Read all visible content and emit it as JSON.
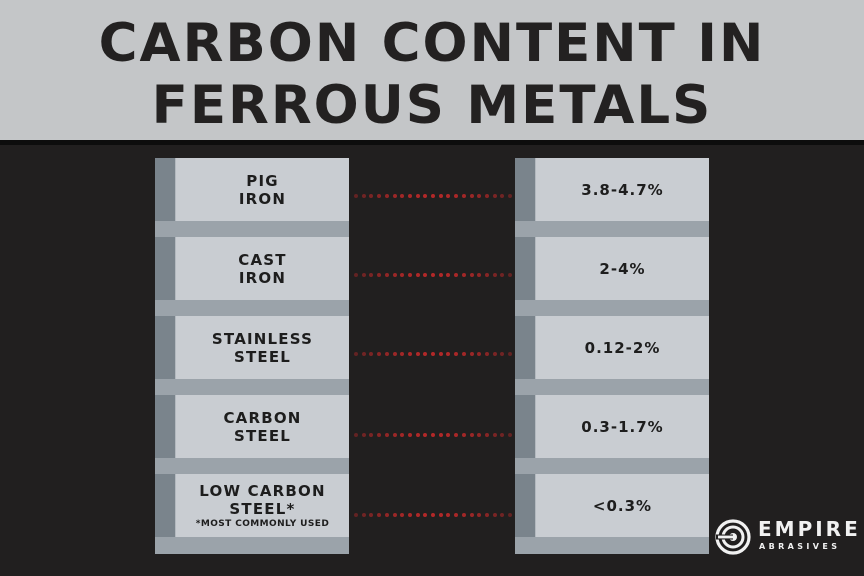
{
  "title_lines": [
    "CARBON CONTENT IN",
    "FERROUS METALS"
  ],
  "rows": [
    {
      "label_lines": [
        "PIG",
        "IRON"
      ],
      "note": "",
      "value": "3.8-4.7%"
    },
    {
      "label_lines": [
        "CAST",
        "IRON"
      ],
      "note": "",
      "value": "2-4%"
    },
    {
      "label_lines": [
        "STAINLESS",
        "STEEL"
      ],
      "note": "",
      "value": "0.12-2%"
    },
    {
      "label_lines": [
        "CARBON",
        "STEEL"
      ],
      "note": "",
      "value": "0.3-1.7%"
    },
    {
      "label_lines": [
        "LOW CARBON",
        "STEEL*"
      ],
      "note": "*MOST COMMONLY USED",
      "value": "<0.3%"
    }
  ],
  "logo": {
    "word": "EMPIRE",
    "sub": "ABRASIVES"
  },
  "colors": {
    "header_bg": "#c4c6c8",
    "background": "#211f1f",
    "dot": "#b32828",
    "block_face": "#c9cdd2"
  }
}
